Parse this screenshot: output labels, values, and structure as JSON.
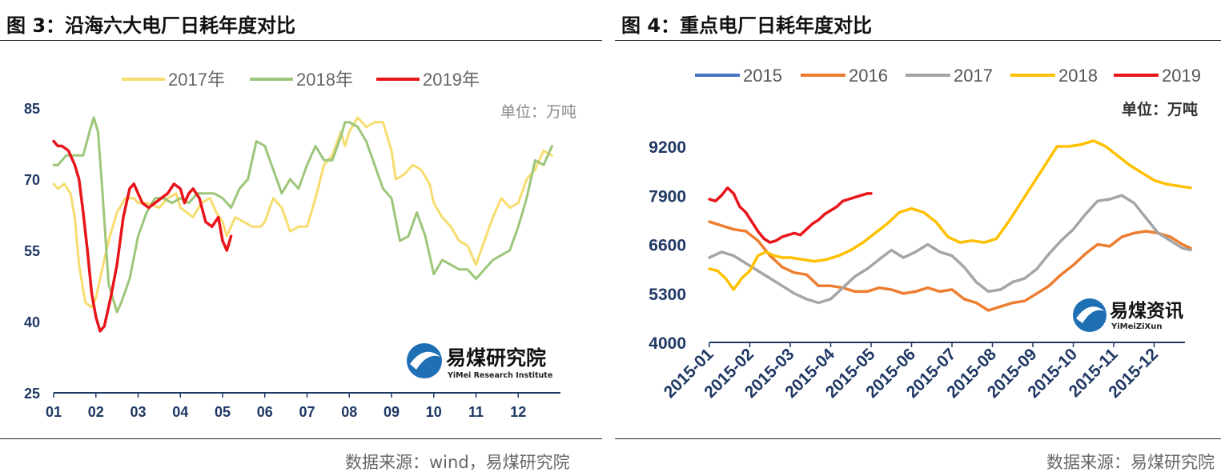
{
  "titles": {
    "left": "图 3：沿海六大电厂日耗年度对比",
    "right": "图 4：重点电厂日耗年度对比"
  },
  "sources": {
    "left": "数据来源：wind，易煤研究院",
    "right": "数据来源：易煤研究院"
  },
  "chart_data": [
    {
      "type": "line",
      "title": "图 3：沿海六大电厂日耗年度对比",
      "unit": "单位：万吨",
      "ylim": [
        25,
        85
      ],
      "yticks": [
        25,
        40,
        55,
        70,
        85
      ],
      "xlim": [
        1,
        13
      ],
      "xticks": [
        "01",
        "02",
        "03",
        "04",
        "05",
        "06",
        "07",
        "08",
        "09",
        "10",
        "11",
        "12"
      ],
      "legend_position": "top",
      "grid": false,
      "logo": {
        "name": "易煤研究院",
        "subtitle": "YiMei Research Institute"
      },
      "series": [
        {
          "name": "2017年",
          "color": "#f7dc6f",
          "x": [
            1.0,
            1.1,
            1.25,
            1.4,
            1.5,
            1.6,
            1.75,
            1.9,
            2.0,
            2.1,
            2.3,
            2.5,
            2.7,
            2.9,
            3.0,
            3.2,
            3.5,
            3.7,
            3.9,
            4.0,
            4.15,
            4.3,
            4.5,
            4.7,
            4.85,
            5.0,
            5.1,
            5.3,
            5.5,
            5.7,
            5.9,
            6.0,
            6.2,
            6.4,
            6.6,
            6.8,
            7.0,
            7.2,
            7.4,
            7.6,
            7.8,
            7.9,
            8.0,
            8.2,
            8.4,
            8.6,
            8.8,
            9.0,
            9.1,
            9.3,
            9.5,
            9.7,
            9.9,
            10.0,
            10.2,
            10.4,
            10.6,
            10.8,
            11.0,
            11.2,
            11.4,
            11.6,
            11.8,
            12.0,
            12.2,
            12.4,
            12.6,
            12.8
          ],
          "values": [
            69,
            68,
            69,
            67,
            62,
            52,
            44,
            43,
            45,
            49,
            57,
            63,
            66,
            66,
            65,
            65,
            64,
            66,
            67,
            64,
            63,
            62,
            65,
            66,
            63,
            61,
            58,
            62,
            61,
            60,
            60,
            61,
            66,
            64,
            59,
            60,
            60,
            66,
            73,
            75,
            80,
            77,
            80,
            83,
            81,
            82,
            82,
            76,
            70,
            71,
            73,
            72,
            69,
            65,
            62,
            60,
            57,
            56,
            52,
            57,
            62,
            66,
            64,
            65,
            70,
            72,
            76,
            75
          ]
        },
        {
          "name": "2018年",
          "color": "#9dc67a",
          "x": [
            1.0,
            1.1,
            1.3,
            1.5,
            1.7,
            1.85,
            1.95,
            2.05,
            2.15,
            2.3,
            2.5,
            2.6,
            2.8,
            3.0,
            3.2,
            3.4,
            3.6,
            3.8,
            4.0,
            4.2,
            4.4,
            4.6,
            4.8,
            5.0,
            5.2,
            5.4,
            5.6,
            5.8,
            6.0,
            6.2,
            6.4,
            6.6,
            6.8,
            7.0,
            7.2,
            7.4,
            7.6,
            7.8,
            7.9,
            8.0,
            8.2,
            8.4,
            8.6,
            8.8,
            9.0,
            9.2,
            9.4,
            9.6,
            9.8,
            10.0,
            10.2,
            10.4,
            10.6,
            10.8,
            11.0,
            11.2,
            11.4,
            11.6,
            11.8,
            12.0,
            12.2,
            12.4,
            12.6,
            12.8
          ],
          "values": [
            73,
            73,
            75,
            75,
            75,
            80,
            83,
            80,
            68,
            48,
            42,
            44,
            49,
            58,
            63,
            66,
            66,
            65,
            66,
            65,
            67,
            67,
            67,
            66,
            64,
            68,
            70,
            78,
            77,
            72,
            67,
            70,
            68,
            73,
            77,
            74,
            74,
            79,
            82,
            82,
            81,
            78,
            73,
            68,
            66,
            57,
            58,
            63,
            58,
            50,
            53,
            52,
            51,
            51,
            49,
            51,
            53,
            54,
            55,
            60,
            66,
            74,
            73,
            77
          ]
        },
        {
          "name": "2019年",
          "color": "#e8151b",
          "x": [
            1.0,
            1.1,
            1.2,
            1.35,
            1.5,
            1.6,
            1.7,
            1.8,
            1.9,
            2.0,
            2.1,
            2.2,
            2.35,
            2.5,
            2.65,
            2.8,
            2.9,
            3.0,
            3.1,
            3.25,
            3.4,
            3.55,
            3.7,
            3.85,
            4.0,
            4.1,
            4.2,
            4.3,
            4.45,
            4.6,
            4.75,
            4.9,
            5.0,
            5.1,
            5.2
          ],
          "values": [
            78,
            77,
            77,
            76,
            73,
            70,
            63,
            55,
            46,
            41,
            38,
            39,
            45,
            52,
            62,
            68,
            69,
            67,
            65,
            64,
            65,
            66,
            67,
            69,
            68,
            65,
            67,
            68,
            66,
            61,
            60,
            62,
            57,
            55,
            58
          ]
        }
      ]
    },
    {
      "type": "line",
      "title": "图 4：重点电厂日耗年度对比",
      "unit": "单位：万吨",
      "ylim": [
        4000,
        9900
      ],
      "yticks": [
        4000,
        5300,
        6600,
        7900,
        9200
      ],
      "xticks": [
        "2015-01",
        "2015-02",
        "2015-03",
        "2015-04",
        "2015-05",
        "2015-06",
        "2015-07",
        "2015-08",
        "2015-09",
        "2015-10",
        "2015-11",
        "2015-12"
      ],
      "xlim": [
        0,
        11.9
      ],
      "legend_position": "top",
      "grid": false,
      "logo": {
        "name": "易煤资讯",
        "subtitle": "YiMeiZiXun"
      },
      "series": [
        {
          "name": "2015",
          "color": "#4472c4",
          "x": [],
          "values": []
        },
        {
          "name": "2016",
          "color": "#ed7d31",
          "x": [
            0.0,
            0.3,
            0.6,
            0.9,
            1.2,
            1.5,
            1.8,
            2.1,
            2.4,
            2.7,
            3.0,
            3.3,
            3.6,
            3.9,
            4.2,
            4.5,
            4.8,
            5.1,
            5.4,
            5.7,
            6.0,
            6.3,
            6.6,
            6.9,
            7.2,
            7.5,
            7.8,
            8.1,
            8.4,
            8.7,
            9.0,
            9.3,
            9.6,
            9.9,
            10.2,
            10.5,
            10.8,
            11.1,
            11.4,
            11.7,
            11.9
          ],
          "values": [
            7200,
            7100,
            7000,
            6950,
            6700,
            6300,
            6000,
            5850,
            5800,
            5500,
            5500,
            5450,
            5350,
            5350,
            5450,
            5400,
            5300,
            5350,
            5450,
            5350,
            5400,
            5150,
            5050,
            4850,
            4950,
            5050,
            5100,
            5300,
            5500,
            5800,
            6050,
            6350,
            6600,
            6550,
            6800,
            6900,
            6950,
            6900,
            6800,
            6600,
            6500
          ]
        },
        {
          "name": "2017",
          "color": "#a5a5a5",
          "x": [
            0.0,
            0.3,
            0.6,
            0.9,
            1.2,
            1.5,
            1.8,
            2.1,
            2.4,
            2.7,
            3.0,
            3.3,
            3.6,
            3.9,
            4.2,
            4.5,
            4.8,
            5.1,
            5.4,
            5.7,
            6.0,
            6.3,
            6.6,
            6.9,
            7.2,
            7.5,
            7.8,
            8.1,
            8.4,
            8.7,
            9.0,
            9.3,
            9.6,
            9.9,
            10.2,
            10.5,
            10.8,
            11.1,
            11.4,
            11.7,
            11.9
          ],
          "values": [
            6250,
            6400,
            6300,
            6100,
            5900,
            5700,
            5500,
            5300,
            5150,
            5050,
            5150,
            5450,
            5750,
            5950,
            6200,
            6450,
            6250,
            6400,
            6600,
            6400,
            6300,
            6000,
            5600,
            5350,
            5400,
            5600,
            5700,
            5950,
            6350,
            6700,
            7000,
            7400,
            7750,
            7800,
            7900,
            7700,
            7300,
            6900,
            6700,
            6500,
            6450
          ]
        },
        {
          "name": "2018",
          "color": "#ffc000",
          "x": [
            0.0,
            0.2,
            0.4,
            0.6,
            0.8,
            1.0,
            1.2,
            1.4,
            1.6,
            1.8,
            2.0,
            2.3,
            2.6,
            2.9,
            3.2,
            3.5,
            3.8,
            4.1,
            4.4,
            4.7,
            5.0,
            5.3,
            5.6,
            5.9,
            6.2,
            6.5,
            6.8,
            7.1,
            7.4,
            7.7,
            8.0,
            8.3,
            8.6,
            8.9,
            9.2,
            9.5,
            9.8,
            10.1,
            10.4,
            10.7,
            11.0,
            11.3,
            11.6,
            11.9
          ],
          "values": [
            5950,
            5900,
            5700,
            5400,
            5700,
            5900,
            6300,
            6400,
            6300,
            6250,
            6250,
            6200,
            6150,
            6200,
            6300,
            6450,
            6650,
            6900,
            7150,
            7450,
            7550,
            7450,
            7200,
            6800,
            6650,
            6700,
            6650,
            6750,
            7200,
            7700,
            8200,
            8700,
            9200,
            9200,
            9250,
            9350,
            9200,
            8950,
            8700,
            8500,
            8300,
            8200,
            8150,
            8100
          ]
        },
        {
          "name": "2019",
          "color": "#e8151b",
          "x": [
            0.0,
            0.15,
            0.3,
            0.45,
            0.6,
            0.75,
            0.9,
            1.05,
            1.2,
            1.35,
            1.5,
            1.65,
            1.8,
            1.95,
            2.1,
            2.25,
            2.4,
            2.55,
            2.7,
            2.85,
            3.0,
            3.15,
            3.3,
            3.45,
            3.6,
            3.75,
            3.9,
            4.0
          ],
          "values": [
            7800,
            7750,
            7900,
            8100,
            7950,
            7600,
            7450,
            7200,
            6950,
            6750,
            6650,
            6700,
            6800,
            6850,
            6900,
            6850,
            7000,
            7150,
            7250,
            7400,
            7500,
            7600,
            7750,
            7800,
            7850,
            7900,
            7950,
            7950
          ]
        }
      ]
    }
  ]
}
